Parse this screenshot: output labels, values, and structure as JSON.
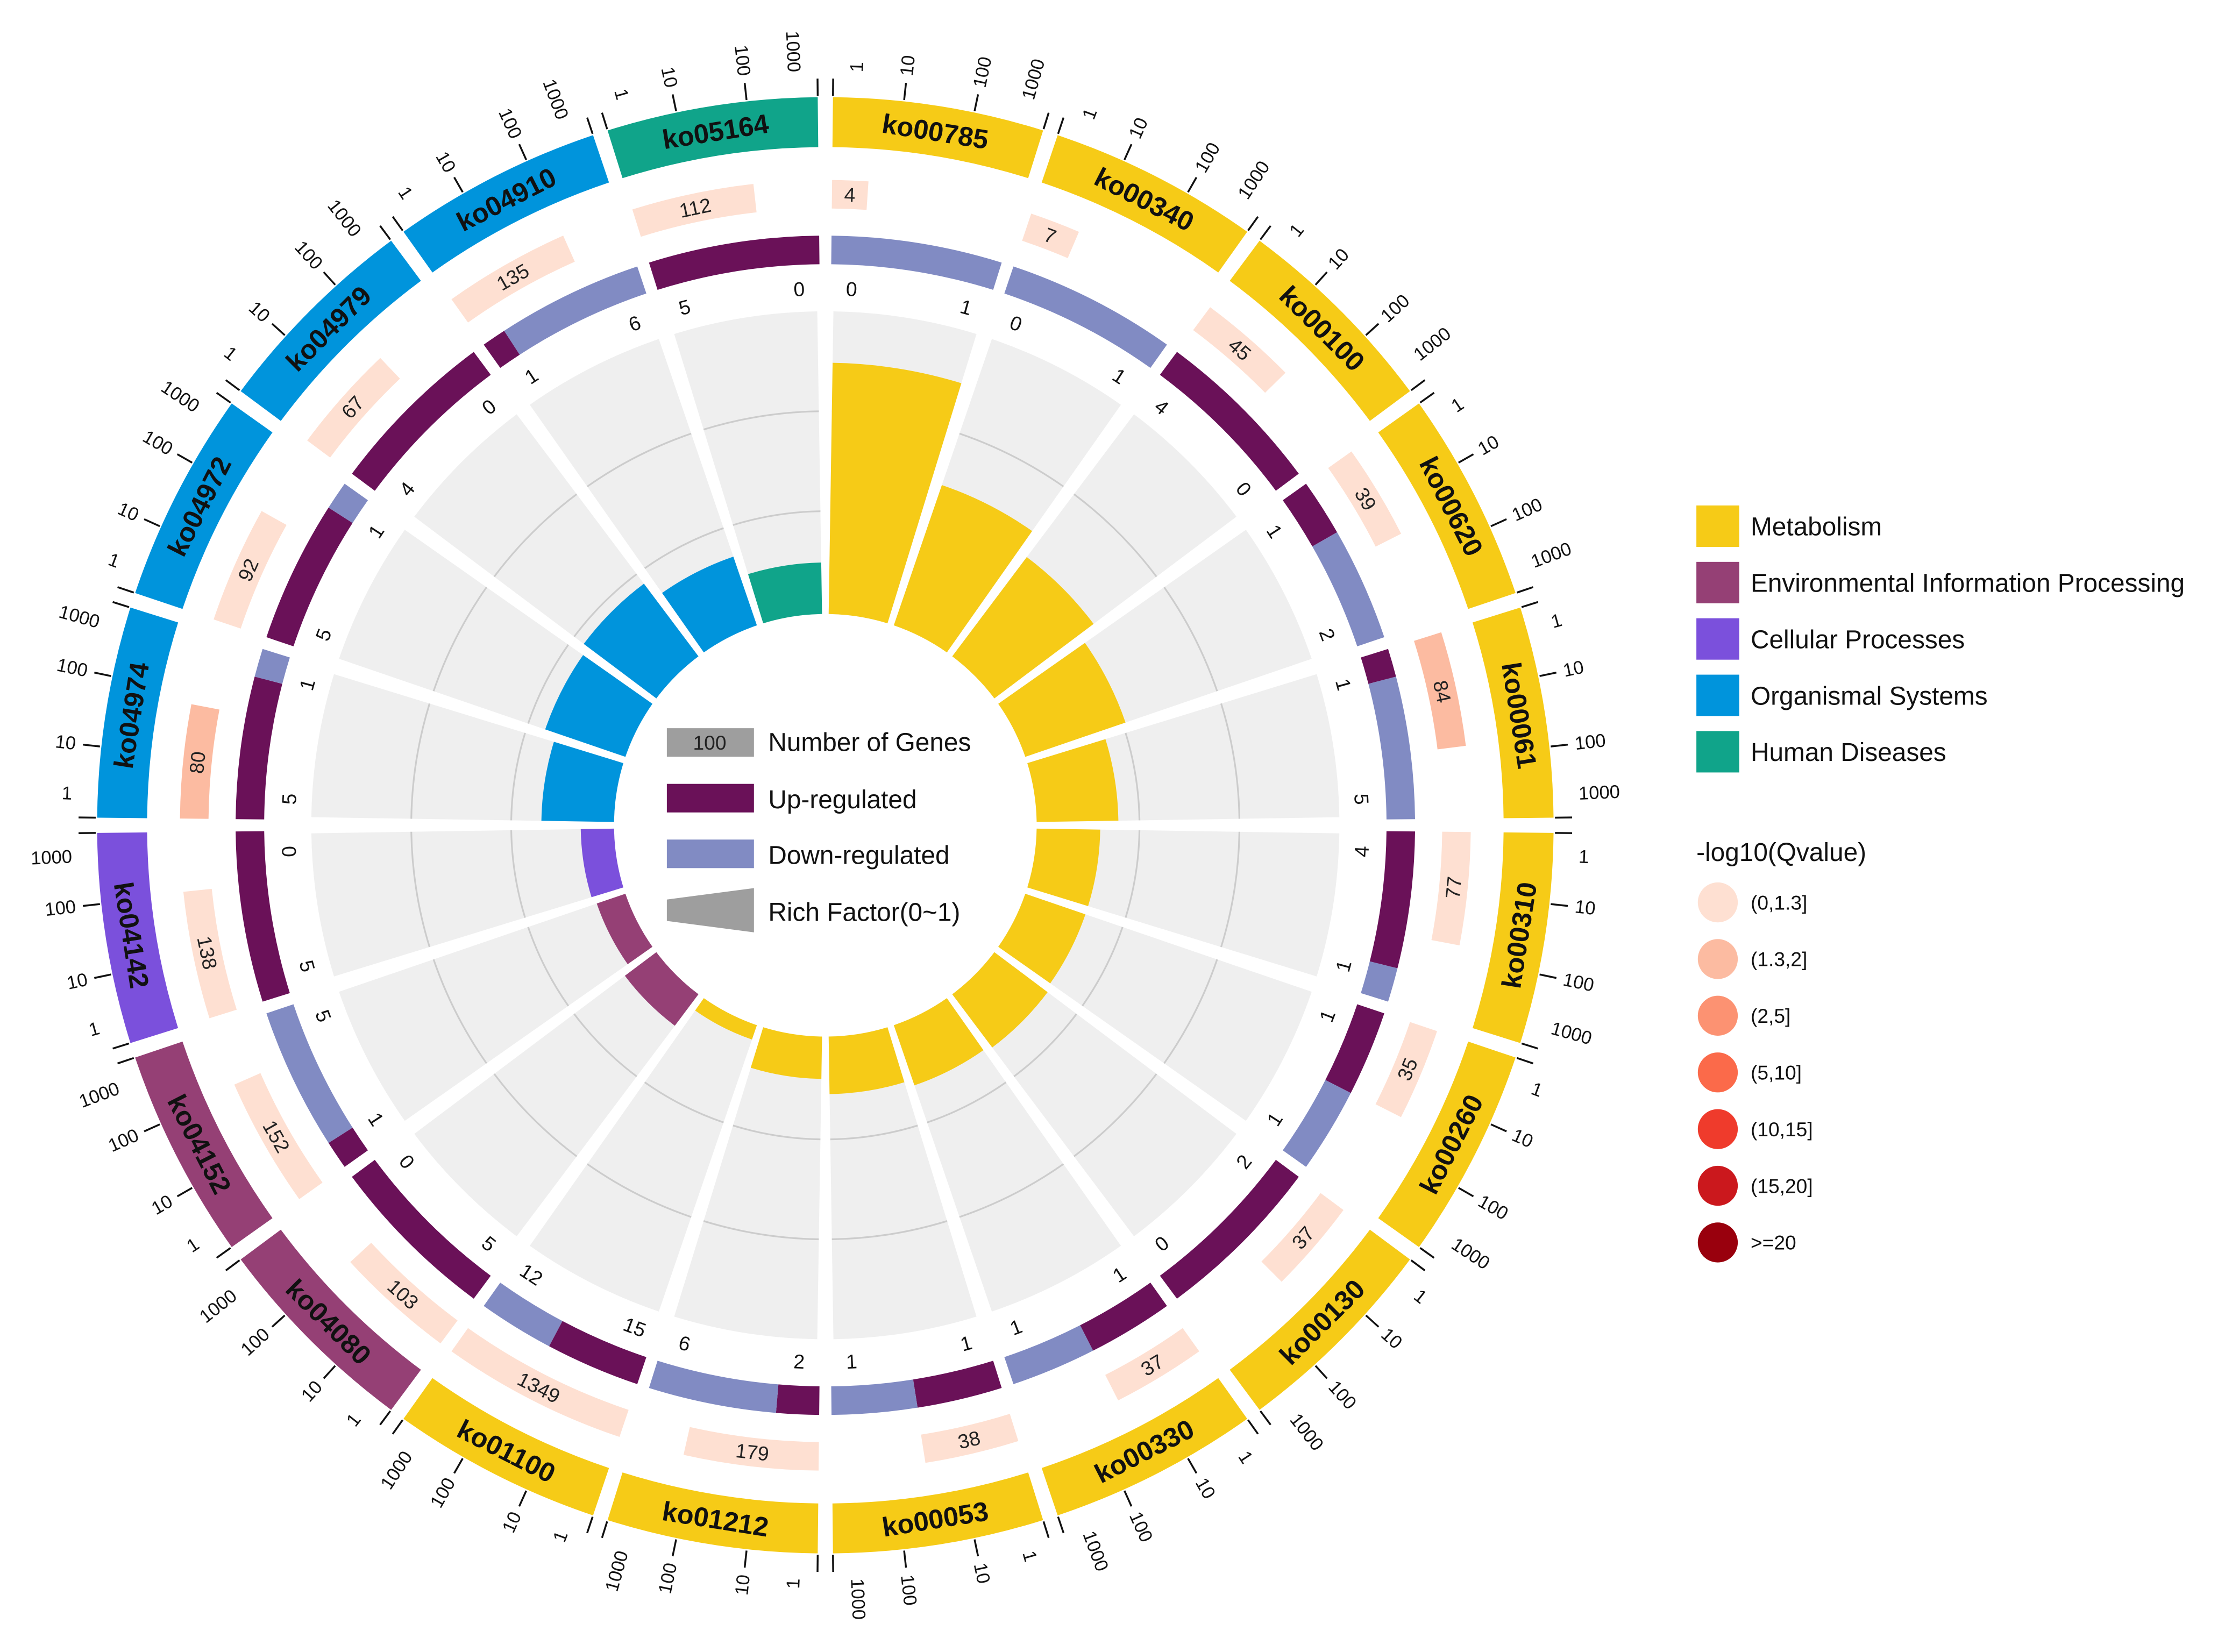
{
  "chart_data": {
    "type": "circular-bar",
    "title": "",
    "tick_labels": [
      "1",
      "10",
      "100",
      "1000"
    ],
    "rich_factor_range": [
      0,
      1
    ],
    "pathways": [
      {
        "id": "ko00785",
        "category": "Metabolism",
        "genes": "4",
        "up": "0",
        "down": "1",
        "rich_factor": 0.83,
        "qvalue_bin": "(0,1.3]"
      },
      {
        "id": "ko00340",
        "category": "Metabolism",
        "genes": "7",
        "up": "0",
        "down": "1",
        "rich_factor": 0.49,
        "qvalue_bin": "(0,1.3]"
      },
      {
        "id": "ko00100",
        "category": "Metabolism",
        "genes": "45",
        "up": "4",
        "down": "0",
        "rich_factor": 0.41,
        "qvalue_bin": "(0,1.3]"
      },
      {
        "id": "ko00620",
        "category": "Metabolism",
        "genes": "39",
        "up": "1",
        "down": "2",
        "rich_factor": 0.35,
        "qvalue_bin": "(0,1.3]"
      },
      {
        "id": "ko00061",
        "category": "Metabolism",
        "genes": "84",
        "up": "1",
        "down": "5",
        "rich_factor": 0.27,
        "qvalue_bin": "(1.3,2]"
      },
      {
        "id": "ko00310",
        "category": "Metabolism",
        "genes": "77",
        "up": "4",
        "down": "1",
        "rich_factor": 0.21,
        "qvalue_bin": "(0,1.3]"
      },
      {
        "id": "ko00260",
        "category": "Metabolism",
        "genes": "35",
        "up": "1",
        "down": "1",
        "rich_factor": 0.21,
        "qvalue_bin": "(0,1.3]"
      },
      {
        "id": "ko00130",
        "category": "Metabolism",
        "genes": "37",
        "up": "2",
        "down": "0",
        "rich_factor": 0.22,
        "qvalue_bin": "(0,1.3]"
      },
      {
        "id": "ko00330",
        "category": "Metabolism",
        "genes": "37",
        "up": "1",
        "down": "1",
        "rich_factor": 0.21,
        "qvalue_bin": "(0,1.3]"
      },
      {
        "id": "ko00053",
        "category": "Metabolism",
        "genes": "38",
        "up": "1",
        "down": "1",
        "rich_factor": 0.19,
        "qvalue_bin": "(0,1.3]"
      },
      {
        "id": "ko01212",
        "category": "Metabolism",
        "genes": "179",
        "up": "2",
        "down": "6",
        "rich_factor": 0.14,
        "qvalue_bin": "(0,1.3]"
      },
      {
        "id": "ko01100",
        "category": "Metabolism",
        "genes": "1349",
        "up": "15",
        "down": "12",
        "rich_factor": 0.05,
        "qvalue_bin": "(0,1.3]"
      },
      {
        "id": "ko04080",
        "category": "Environmental Information Processing",
        "genes": "103",
        "up": "5",
        "down": "0",
        "rich_factor": 0.13,
        "qvalue_bin": "(0,1.3]"
      },
      {
        "id": "ko04152",
        "category": "Environmental Information Processing",
        "genes": "152",
        "up": "1",
        "down": "5",
        "rich_factor": 0.1,
        "qvalue_bin": "(0,1.3]"
      },
      {
        "id": "ko04142",
        "category": "Cellular Processes",
        "genes": "138",
        "up": "5",
        "down": "0",
        "rich_factor": 0.11,
        "qvalue_bin": "(0,1.3]"
      },
      {
        "id": "ko04974",
        "category": "Organismal Systems",
        "genes": "80",
        "up": "5",
        "down": "1",
        "rich_factor": 0.24,
        "qvalue_bin": "(1.3,2]"
      },
      {
        "id": "ko04972",
        "category": "Organismal Systems",
        "genes": "92",
        "up": "5",
        "down": "1",
        "rich_factor": 0.28,
        "qvalue_bin": "(0,1.3]"
      },
      {
        "id": "ko04979",
        "category": "Organismal Systems",
        "genes": "67",
        "up": "4",
        "down": "0",
        "rich_factor": 0.3,
        "qvalue_bin": "(0,1.3]"
      },
      {
        "id": "ko04910",
        "category": "Organismal Systems",
        "genes": "135",
        "up": "1",
        "down": "6",
        "rich_factor": 0.24,
        "qvalue_bin": "(0,1.3]"
      },
      {
        "id": "ko05164",
        "category": "Human Diseases",
        "genes": "112",
        "up": "5",
        "down": "0",
        "rich_factor": 0.17,
        "qvalue_bin": "(0,1.3]"
      }
    ],
    "category_legend": [
      {
        "label": "Metabolism",
        "color": "#f6cb17"
      },
      {
        "label": "Environmental Information Processing",
        "color": "#954075"
      },
      {
        "label": "Cellular Processes",
        "color": "#7b50dc"
      },
      {
        "label": "Organismal Systems",
        "color": "#0094dc"
      },
      {
        "label": "Human Diseases",
        "color": "#10a48a"
      }
    ],
    "qvalue_legend": {
      "title": "-log10(Qvalue)",
      "bins": [
        {
          "label": "(0,1.3]",
          "color": "#fee0d2"
        },
        {
          "label": "(1.3,2]",
          "color": "#fcbba1"
        },
        {
          "label": "(2,5]",
          "color": "#fc9272"
        },
        {
          "label": "(5,10]",
          "color": "#fb6a4a"
        },
        {
          "label": "(10,15]",
          "color": "#ef3b2c"
        },
        {
          "label": "(15,20]",
          "color": "#cb181d"
        },
        {
          "label": ">=20",
          "color": "#99000d"
        }
      ]
    },
    "center_legend": {
      "genes_sample": "100",
      "genes_label": "Number of Genes",
      "up_label": "Up-regulated",
      "down_label": "Down-regulated",
      "rich_label": "Rich Factor(0~1)"
    },
    "colors": {
      "up": "#6a1158",
      "down": "#818bc3",
      "gray": "#9e9e9e",
      "panel": "#efefef",
      "grid": "#cccccc"
    }
  }
}
